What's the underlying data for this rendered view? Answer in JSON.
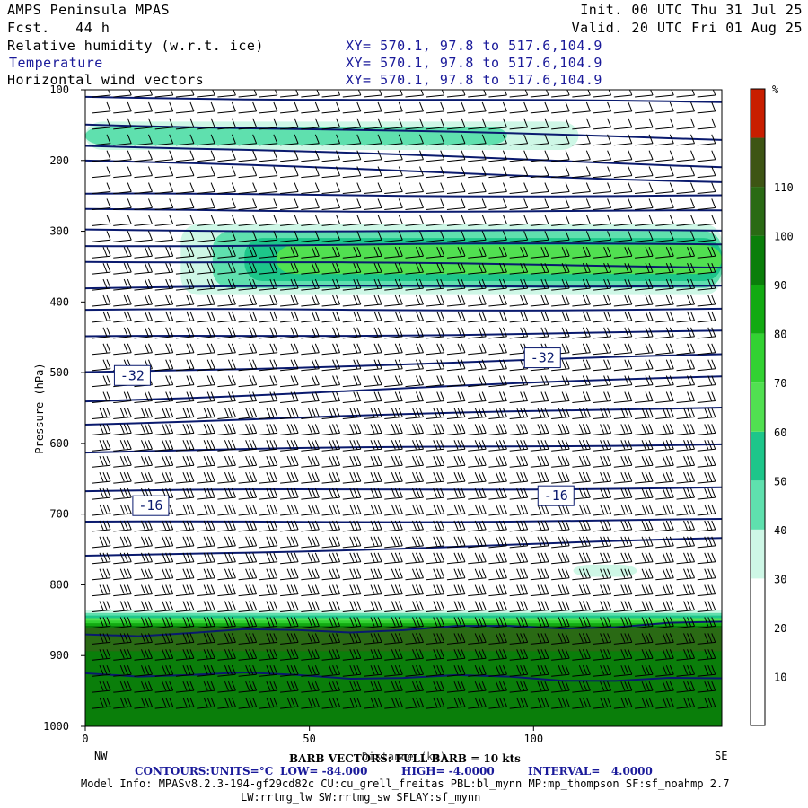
{
  "header": {
    "title": "AMPS Peninsula MPAS",
    "fcst": "Fcst.   44 h",
    "init": "Init. 00 UTC Thu 31 Jul 25",
    "valid": "Valid. 20 UTC Fri 01 Aug 25",
    "fields": [
      {
        "label": "Relative humidity (w.r.t. ice)",
        "xy": "XY= 570.1, 97.8 to 517.6,104.9"
      },
      {
        "label": "Temperature",
        "xy": "XY= 570.1, 97.8 to 517.6,104.9"
      },
      {
        "label": "Horizontal wind vectors",
        "xy": "XY= 570.1, 97.8 to 517.6,104.9"
      }
    ]
  },
  "colors": {
    "contour": "#0a1a6e",
    "barb": "#000000",
    "colorbar": [
      "#ffffff",
      "#ffffff",
      "#ffffff",
      "#cef7e6",
      "#5fe0ae",
      "#1dc68a",
      "#51e051",
      "#32d232",
      "#12aa12",
      "#0a7e0a",
      "#2a6a14",
      "#3e5514",
      "#c81e00"
    ]
  },
  "chart_data": {
    "type": "cross-section",
    "x_axis": {
      "label": "Distance (km)",
      "ticks": [
        0,
        50,
        100
      ],
      "range": [
        0,
        142
      ],
      "left_end": "NW",
      "right_end": "SE"
    },
    "y_axis": {
      "label": "Pressure (hPa)",
      "ticks": [
        100,
        200,
        300,
        400,
        500,
        600,
        700,
        800,
        900,
        1000
      ],
      "range": [
        100,
        1000
      ]
    },
    "colorbar": {
      "unit": "%",
      "ticks": [
        10,
        20,
        30,
        40,
        50,
        60,
        70,
        80,
        90,
        100,
        110
      ]
    },
    "temperature_contour_labels": [
      {
        "text": "-32",
        "x": 10.5,
        "p": 504
      },
      {
        "text": "-32",
        "x": 102,
        "p": 479
      },
      {
        "text": "-16",
        "x": 14.6,
        "p": 688
      },
      {
        "text": "-16",
        "x": 105,
        "p": 674
      }
    ],
    "temperature_contours": [
      {
        "p_left": 110,
        "p_right": 118
      },
      {
        "p_left": 148,
        "p_right": 170
      },
      {
        "p_left": 178,
        "p_right": 208
      },
      {
        "p_left": 200,
        "p_right": 230
      },
      {
        "p_left": 248,
        "p_right": 250
      },
      {
        "p_left": 270,
        "p_right": 272
      },
      {
        "p_left": 298,
        "p_right": 300
      },
      {
        "p_left": 320,
        "p_right": 318
      },
      {
        "p_left": 342,
        "p_right": 350
      },
      {
        "p_left": 380,
        "p_right": 376
      },
      {
        "p_left": 412,
        "p_right": 410
      },
      {
        "p_left": 450,
        "p_right": 442
      },
      {
        "p_left": 500,
        "p_right": 475
      },
      {
        "p_left": 540,
        "p_right": 505
      },
      {
        "p_left": 572,
        "p_right": 548
      },
      {
        "p_left": 612,
        "p_right": 600
      },
      {
        "p_left": 668,
        "p_right": 662
      },
      {
        "p_left": 712,
        "p_right": 708
      },
      {
        "p_left": 760,
        "p_right": 735
      },
      {
        "p_left": 870,
        "p_right": 855
      },
      {
        "p_left": 925,
        "p_right": 935
      }
    ],
    "rh_bands": [
      {
        "name": "upper",
        "p_top": 130,
        "p_bottom": 200,
        "max": 50
      },
      {
        "name": "mid",
        "p_top": 270,
        "p_bottom": 410,
        "max": 70
      },
      {
        "name": "low",
        "p_top": 760,
        "p_bottom": 800,
        "max": 40
      },
      {
        "name": "boundary",
        "p_top": 820,
        "p_bottom": 1000,
        "max": 110
      }
    ],
    "wind": {
      "barb_vectors": "BARB VECTORS: FULL BARB = 10 kts"
    }
  },
  "footer": {
    "barb": "BARB VECTORS: FULL BARB = 10 kts",
    "contours_label": "CONTOURS:",
    "units": "UNITS=°C",
    "low": "LOW= -84.000",
    "high": "HIGH= -4.0000",
    "interval": "INTERVAL=   4.0000",
    "model_info": "Model Info: MPASv8.2.3-194-gf29cd82c CU:cu_grell_freitas PBL:bl_mynn MP:mp_thompson SF:sf_noahmp 2.7",
    "model_info2": "LW:rrtmg_lw SW:rrtmg_sw SFLAY:sf_mynn"
  }
}
